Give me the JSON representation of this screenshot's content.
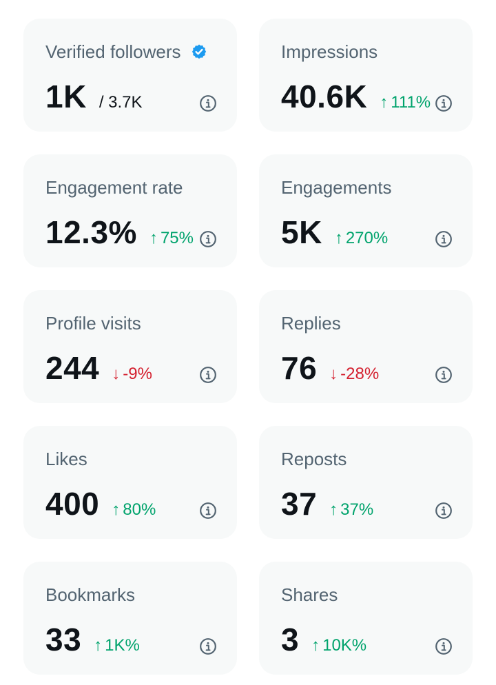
{
  "colors": {
    "card_background": "#f7f9f9",
    "title": "#536471",
    "value": "#0f1419",
    "increase": "#00a36c",
    "decrease": "#d4202f",
    "verified_badge": "#1d9bf0"
  },
  "cards": [
    {
      "key": "verified_followers",
      "title": "Verified followers",
      "value": "1K",
      "total": "/ 3.7K",
      "icon": "verified-badge-icon"
    },
    {
      "key": "impressions",
      "title": "Impressions",
      "value": "40.6K",
      "change": "111%",
      "direction": "up",
      "arrow": "↑"
    },
    {
      "key": "engagement_rate",
      "title": "Engagement rate",
      "value": "12.3%",
      "change": "75%",
      "direction": "up",
      "arrow": "↑"
    },
    {
      "key": "engagements",
      "title": "Engagements",
      "value": "5K",
      "change": "270%",
      "direction": "up",
      "arrow": "↑"
    },
    {
      "key": "profile_visits",
      "title": "Profile visits",
      "value": "244",
      "change": "-9%",
      "direction": "down",
      "arrow": "↓"
    },
    {
      "key": "replies",
      "title": "Replies",
      "value": "76",
      "change": "-28%",
      "direction": "down",
      "arrow": "↓"
    },
    {
      "key": "likes",
      "title": "Likes",
      "value": "400",
      "change": "80%",
      "direction": "up",
      "arrow": "↑"
    },
    {
      "key": "reposts",
      "title": "Reposts",
      "value": "37",
      "change": "37%",
      "direction": "up",
      "arrow": "↑"
    },
    {
      "key": "bookmarks",
      "title": "Bookmarks",
      "value": "33",
      "change": "1K%",
      "direction": "up",
      "arrow": "↑"
    },
    {
      "key": "shares",
      "title": "Shares",
      "value": "3",
      "change": "10K%",
      "direction": "up",
      "arrow": "↑"
    }
  ]
}
